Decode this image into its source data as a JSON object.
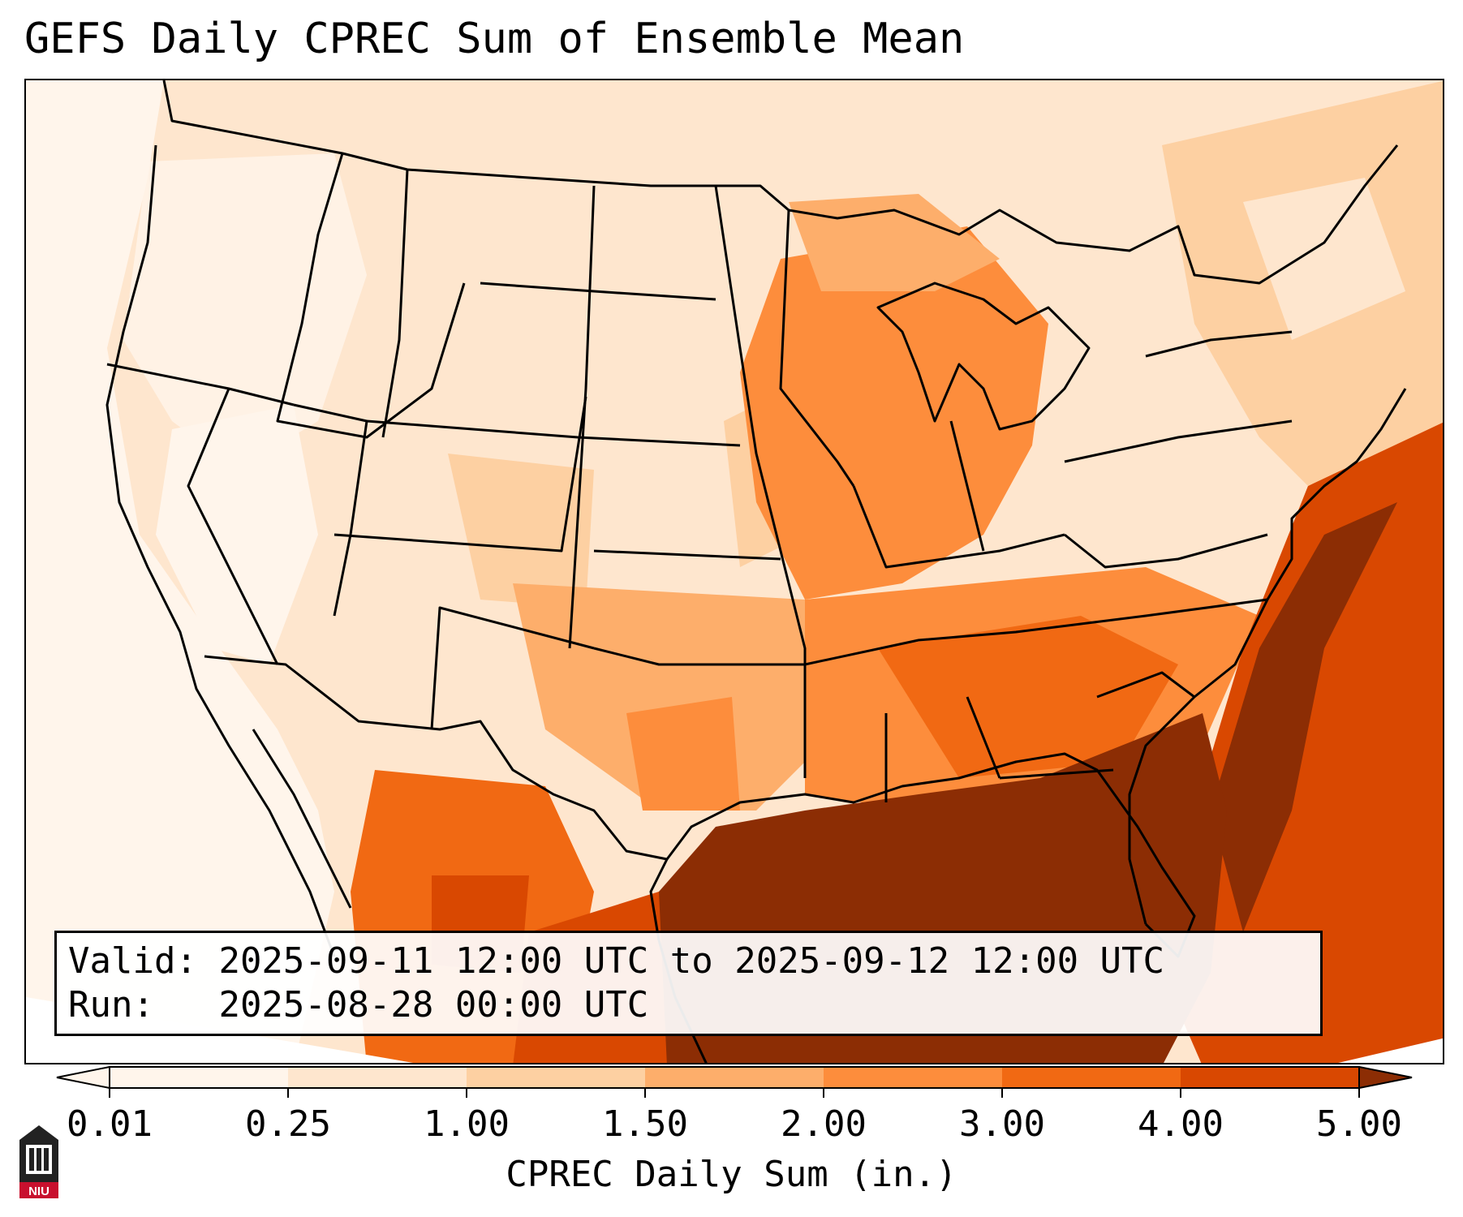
{
  "title": "GEFS Daily CPREC Sum of Ensemble Mean",
  "info": {
    "valid_label": "Valid:",
    "valid_value": "2025-09-11 12:00 UTC to 2025-09-12 12:00 UTC",
    "run_label": "Run:",
    "run_value": "2025-08-28 00:00 UTC"
  },
  "colorbar": {
    "label": "CPREC Daily Sum (in.)",
    "ticks": [
      "0.01",
      "0.25",
      "1.00",
      "1.50",
      "2.00",
      "3.00",
      "4.00",
      "5.00"
    ],
    "colors": [
      "#fff5eb",
      "#fee6ce",
      "#fdd0a2",
      "#fdae6b",
      "#fd8d3c",
      "#f16913",
      "#d94801",
      "#8c2d04"
    ],
    "extend": "both"
  },
  "map": {
    "region": "CONUS",
    "projection": "lambert-conformal",
    "precip_colors": {
      "very_light": "#fff5eb",
      "light": "#fee6ce",
      "light_moderate": "#fdd0a2",
      "moderate": "#fdae6b",
      "moderate_heavy": "#fd8d3c",
      "heavy": "#f16913",
      "very_heavy": "#d94801",
      "extreme": "#8c2d04"
    }
  },
  "logo": {
    "text": "NIU",
    "accent": "#c8102e"
  }
}
